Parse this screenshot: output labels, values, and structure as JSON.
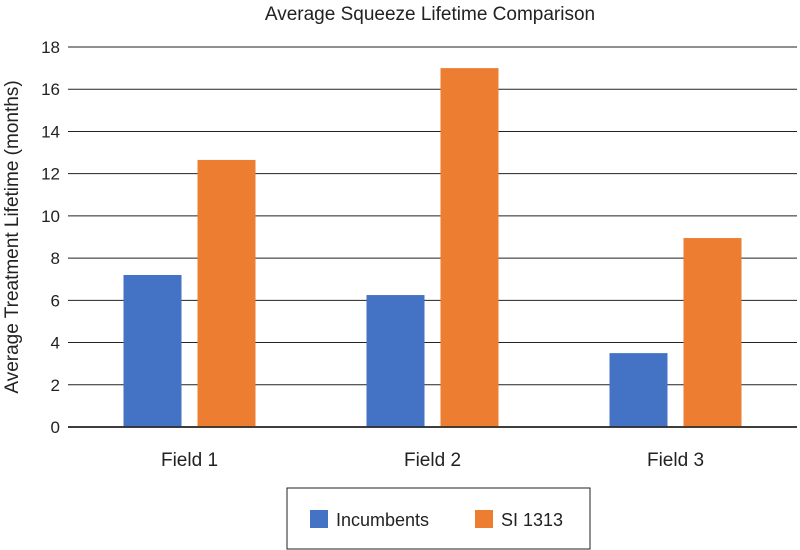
{
  "chart_data": {
    "type": "bar",
    "title": "Average Squeeze Lifetime Comparison",
    "xlabel": "",
    "ylabel": "Average Treatment Lifetime (months)",
    "categories": [
      "Field 1",
      "Field 2",
      "Field 3"
    ],
    "series": [
      {
        "name": "Incumbents",
        "values": [
          7.2,
          6.25,
          3.5
        ],
        "color": "#4472c4"
      },
      {
        "name": "SI 1313",
        "values": [
          12.65,
          17.0,
          8.95
        ],
        "color": "#ed7d31"
      }
    ],
    "ylim": [
      0,
      18
    ],
    "yticks": [
      0,
      2,
      4,
      6,
      8,
      10,
      12,
      14,
      16,
      18
    ],
    "grid": true,
    "legend_position": "bottom"
  }
}
